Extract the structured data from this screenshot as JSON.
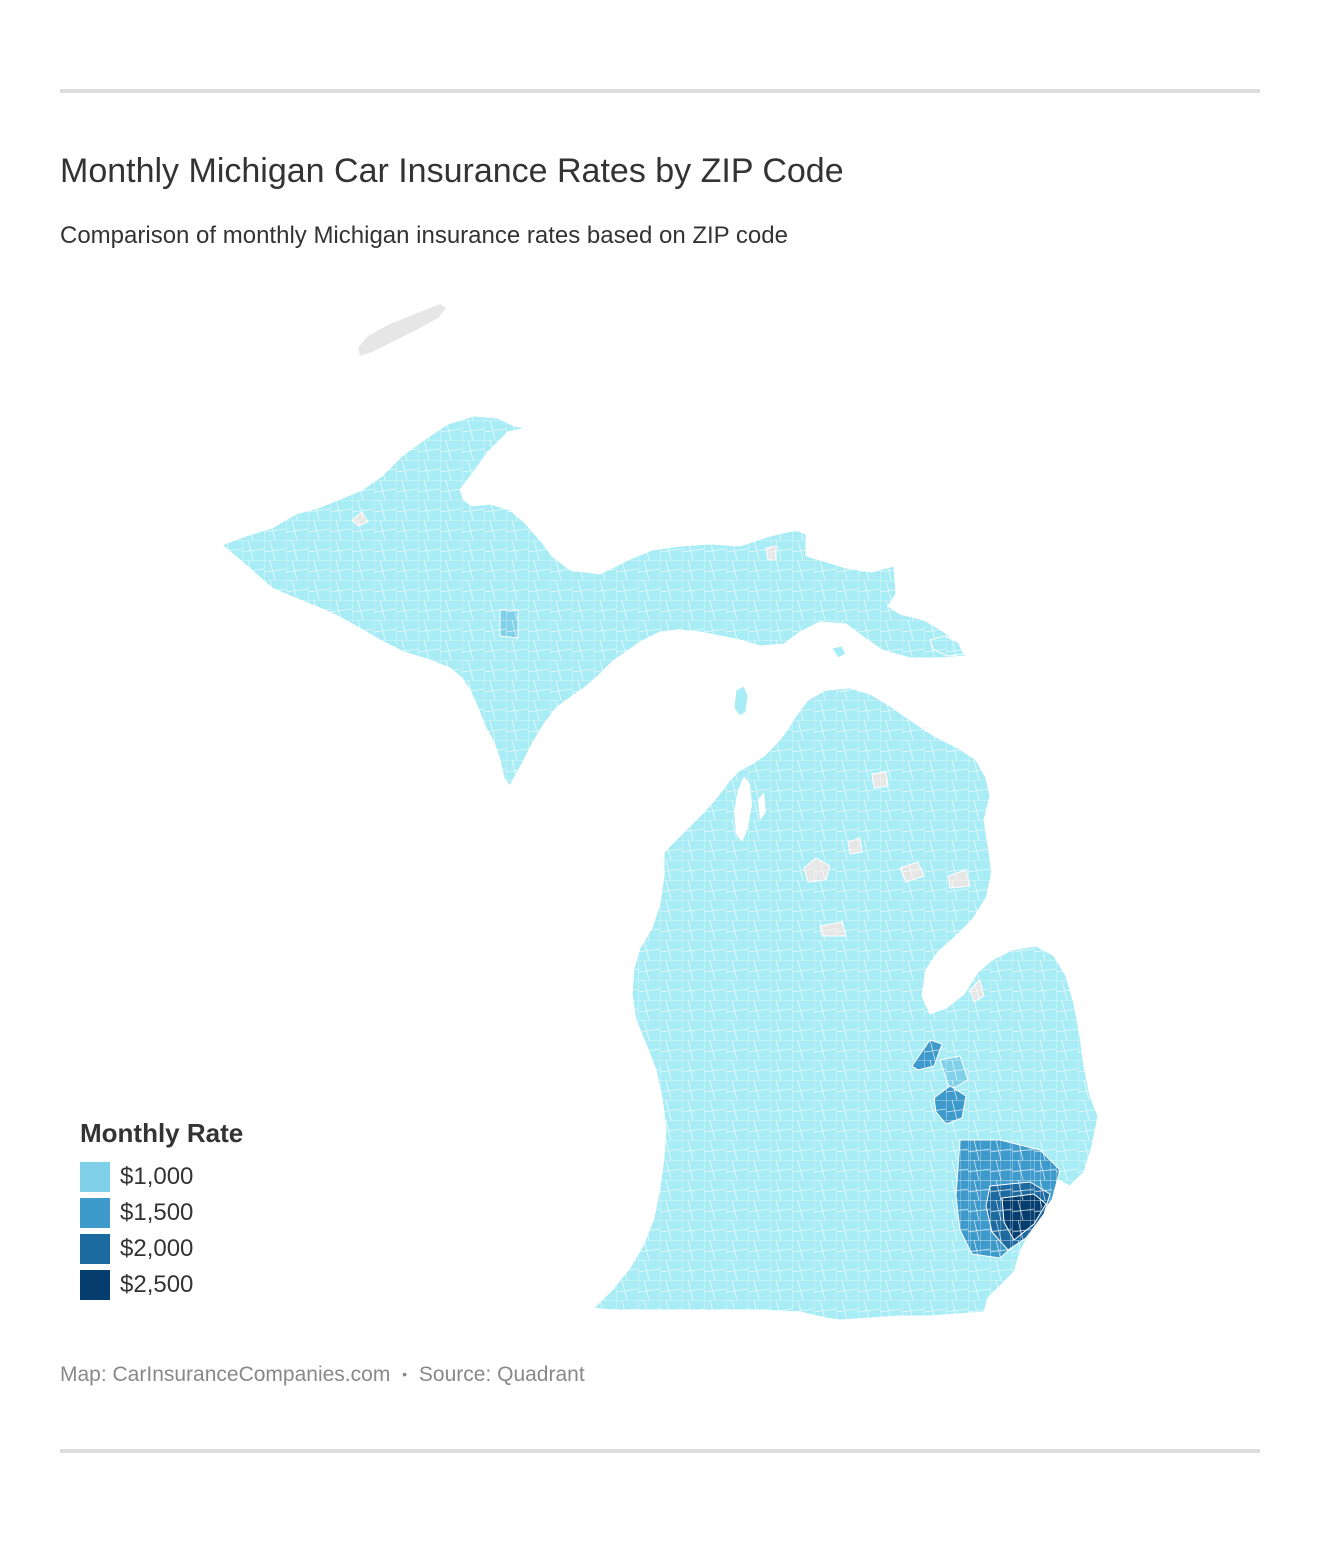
{
  "header": {
    "title": "Monthly Michigan Car Insurance Rates by ZIP Code",
    "subtitle": "Comparison of monthly Michigan insurance rates based on ZIP code"
  },
  "legend": {
    "title": "Monthly Rate",
    "items": [
      {
        "label": "$1,000",
        "color": "#7fd0e8"
      },
      {
        "label": "$1,500",
        "color": "#3f9acc"
      },
      {
        "label": "$2,000",
        "color": "#1d6aa0"
      },
      {
        "label": "$2,500",
        "color": "#053e6e"
      }
    ]
  },
  "map": {
    "region": "Michigan",
    "base_fill": "#a8ecf6",
    "no_data_fill": "#e6e6e6",
    "border_color": "#ffffff"
  },
  "footer": {
    "map_credit": "Map: CarInsuranceCompanies.com",
    "separator": "•",
    "source": "Source: Quadrant"
  }
}
